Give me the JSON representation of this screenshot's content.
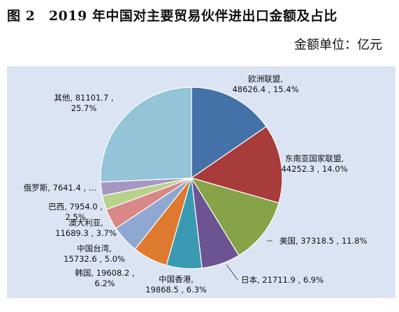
{
  "figure": {
    "title": "图 2　2019 年中国对主要贸易伙伴进出口金额及占比",
    "unit": "金额单位：亿元"
  },
  "chart_data": {
    "type": "pie",
    "title": "图 2　2019 年中国对主要贸易伙伴进出口金额及占比",
    "unit": "亿元",
    "start_angle_deg": 0,
    "direction": "clockwise",
    "slices": [
      {
        "name": "欧洲联盟",
        "value": 48626.4,
        "percent": "15.4%",
        "color": "#4472a8",
        "line1": "欧洲联盟,",
        "line2": "48626.4 , 15.4%"
      },
      {
        "name": "东南亚国家联盟",
        "value": 44252.3,
        "percent": "14.0%",
        "color": "#a83c3a",
        "line1": "东南亚国家联盟,",
        "line2": "44252.3 , 14.0%"
      },
      {
        "name": "美国",
        "value": 37318.5,
        "percent": "11.8%",
        "color": "#86a347",
        "line1": "美国, 37318.5 , 11.8%",
        "line2": ""
      },
      {
        "name": "日本",
        "value": 21711.9,
        "percent": "6.9%",
        "color": "#6c5391",
        "line1": "日本, 21711.9 , 6.9%",
        "line2": ""
      },
      {
        "name": "中国香港",
        "value": 19868.5,
        "percent": "6.3%",
        "color": "#3a9ab2",
        "line1": "中国香港,",
        "line2": "19868.5 , 6.3%"
      },
      {
        "name": "韩国",
        "value": 19608.2,
        "percent": "6.2%",
        "color": "#de7a30",
        "line1": "韩国, 19608.2 ,",
        "line2": "6.2%"
      },
      {
        "name": "中国台湾",
        "value": 15732.6,
        "percent": "5.0%",
        "color": "#8fa8d2",
        "line1": "中国台湾,",
        "line2": "15732.6 , 5.0%"
      },
      {
        "name": "澳大利亚",
        "value": 11689.3,
        "percent": "3.7%",
        "color": "#d88886",
        "line1": "澳大利亚,",
        "line2": "11689.3 , 3.7%"
      },
      {
        "name": "巴西",
        "value": 7954.0,
        "percent": "2.5%",
        "color": "#b8d28c",
        "line1": "巴西, 7954.0 ,",
        "line2": "2.5%"
      },
      {
        "name": "俄罗斯",
        "value": 7641.4,
        "percent": "2.4%",
        "color": "#a697c2",
        "line1": "俄罗斯, 7641.4 , …",
        "line2": ""
      },
      {
        "name": "其他",
        "value": 81101.7,
        "percent": "25.7%",
        "color": "#93c4d8",
        "line1": "其他, 81101.7 ,",
        "line2": "25.7%"
      }
    ],
    "legend": "none"
  }
}
